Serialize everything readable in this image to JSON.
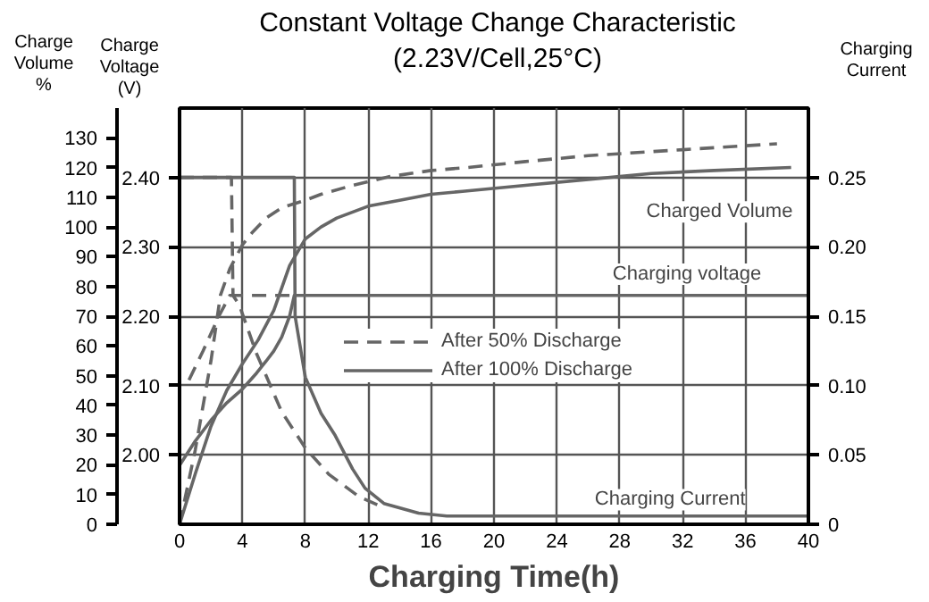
{
  "chart_data": {
    "type": "line",
    "title": "Constant Voltage Change Characteristic",
    "subtitle": "(2.23V/Cell,25°C)",
    "xlabel": "Charging Time(h)",
    "ylabel": "Charge Voltage (V)",
    "y2label": "Charging Current",
    "y3label": "Charge Volume %",
    "xlim": [
      0,
      40
    ],
    "xticks": [
      0,
      4,
      8,
      12,
      16,
      20,
      24,
      28,
      32,
      36,
      40
    ],
    "ylim": [
      1.9,
      2.5
    ],
    "yticks": [
      {
        "value": 2.0,
        "label": "2.00"
      },
      {
        "value": 2.1,
        "label": "2.10"
      },
      {
        "value": 2.2,
        "label": "2.20"
      },
      {
        "value": 2.3,
        "label": "2.30"
      },
      {
        "value": 2.4,
        "label": "2.40"
      }
    ],
    "y2lim": [
      0,
      0.3
    ],
    "y2ticks": [
      0,
      0.05,
      {
        "value": 0.1,
        "label": "0.10"
      },
      0.15,
      {
        "value": 0.2,
        "label": "0.20"
      },
      0.25
    ],
    "y3lim": [
      0,
      140
    ],
    "y3ticks": [
      0,
      10,
      20,
      30,
      40,
      50,
      60,
      70,
      80,
      90,
      100,
      110,
      120,
      130
    ],
    "grid": true,
    "legend": "center",
    "annotations": [
      "Charged Volume",
      "Charging voltage",
      "Charging Current"
    ],
    "series": [
      {
        "name": "After 50% Discharge",
        "color": "#666666",
        "line_style": "dashed",
        "axis": "y3",
        "x": [
          0,
          1,
          2,
          2.6,
          3.2,
          4,
          4.6,
          5.5,
          6.5,
          8,
          9,
          11,
          13.4,
          16,
          18.3,
          22,
          26,
          32,
          38
        ],
        "values": [
          0,
          25,
          55,
          77,
          86,
          94,
          98,
          103,
          106.5,
          109,
          111,
          114,
          117,
          119,
          120,
          122,
          124,
          126,
          128
        ]
      },
      {
        "name": "After 100% Discharge",
        "color": "#666666",
        "line_style": "solid",
        "axis": "y3",
        "x": [
          0,
          1,
          2,
          3,
          4,
          5,
          6,
          7,
          8,
          9,
          10,
          12,
          14,
          16,
          18,
          22,
          26,
          30,
          34,
          38.9
        ],
        "values": [
          0,
          17,
          33,
          45,
          54,
          62,
          72,
          87,
          96,
          100,
          103,
          107,
          109,
          111,
          112,
          114,
          116,
          118,
          119,
          120
        ]
      },
      {
        "color": "#666666",
        "line_style": "solid",
        "x": [
          0,
          1,
          2,
          3,
          4,
          4.9,
          5.5,
          6,
          6.5,
          7,
          7.3,
          40
        ],
        "values": [
          1.985,
          2.02,
          2.05,
          2.075,
          2.095,
          2.118,
          2.135,
          2.15,
          2.17,
          2.2,
          2.23,
          2.23
        ]
      },
      {
        "color": "#666666",
        "line_style": "dashed",
        "x": [
          0.6,
          1.5,
          2.5,
          3.2,
          7.3
        ],
        "values": [
          2.108,
          2.15,
          2.2,
          2.23,
          2.23
        ]
      },
      {
        "color": "#666666",
        "line_style": "solid",
        "axis": "y2",
        "x": [
          0,
          7.3,
          7.35,
          8,
          9,
          9.9,
          11,
          11.8,
          13,
          15.2,
          17,
          40
        ],
        "values": [
          0.25,
          0.25,
          0.15,
          0.106,
          0.08,
          0.064,
          0.04,
          0.026,
          0.015,
          0.008,
          0.006,
          0.006
        ]
      },
      {
        "color": "#666666",
        "line_style": "dashed",
        "axis": "y2",
        "x": [
          0,
          3.3,
          3.4,
          3.8,
          4.9,
          6.5,
          8,
          9.5,
          11.4,
          13
        ],
        "values": [
          0.25,
          0.25,
          0.165,
          0.158,
          0.123,
          0.081,
          0.055,
          0.036,
          0.02,
          0.012
        ]
      }
    ]
  }
}
